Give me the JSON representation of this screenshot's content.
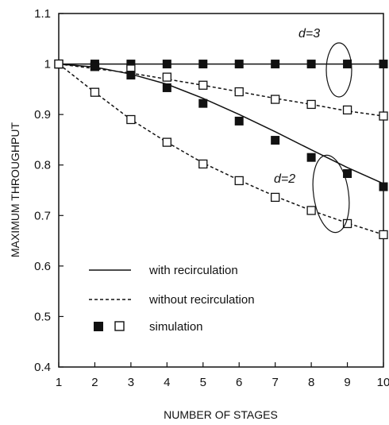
{
  "chart_data": {
    "type": "line",
    "xlabel": "NUMBER OF STAGES",
    "ylabel": "MAXIMUM THROUGHPUT",
    "xlim": [
      1,
      10
    ],
    "ylim": [
      0.4,
      1.1
    ],
    "x_ticks": [
      "1",
      "2",
      "3",
      "4",
      "5",
      "6",
      "7",
      "8",
      "9",
      "10"
    ],
    "y_ticks": [
      "0.4",
      "0.5",
      "0.6",
      "0.7",
      "0.8",
      "0.9",
      "1",
      "1.1"
    ],
    "grid": false,
    "legend_position": "lower-left",
    "legend": {
      "solid": "with recirculation",
      "dashed": "without recirculation",
      "markers": "simulation"
    },
    "annotations": [
      {
        "text": "d=3",
        "x": 8.4,
        "y": 1.03
      },
      {
        "text": "d=2",
        "x": 8.2,
        "y": 0.732
      }
    ],
    "x": [
      1,
      2,
      3,
      4,
      5,
      6,
      7,
      8,
      9,
      10
    ],
    "series": [
      {
        "group": "d=3",
        "line": "solid",
        "marker": "filled-square",
        "values": [
          1,
          1,
          1,
          1,
          1,
          1,
          1,
          1,
          1,
          1
        ],
        "simulation": [
          1,
          1,
          1,
          1,
          1,
          1,
          1,
          1,
          1,
          1
        ]
      },
      {
        "group": "d=3",
        "line": "dashed",
        "marker": "open-square",
        "values": [
          1,
          0.991,
          0.982,
          0.97,
          0.958,
          0.945,
          0.932,
          0.92,
          0.907,
          0.897
        ],
        "simulation": [
          1,
          0.995,
          0.99,
          0.974,
          0.958,
          0.945,
          0.93,
          0.92,
          0.909,
          0.897
        ]
      },
      {
        "group": "d=2",
        "line": "solid",
        "marker": "filled-square",
        "values": [
          1,
          0.994,
          0.98,
          0.96,
          0.932,
          0.9,
          0.866,
          0.83,
          0.795,
          0.763
        ],
        "simulation": [
          1,
          0.995,
          0.978,
          0.953,
          0.922,
          0.887,
          0.849,
          0.815,
          0.783,
          0.757
        ]
      },
      {
        "group": "d=2",
        "line": "dashed",
        "marker": "open-square",
        "values": [
          1,
          0.944,
          0.89,
          0.845,
          0.804,
          0.77,
          0.738,
          0.71,
          0.685,
          0.662
        ],
        "simulation": [
          1,
          0.944,
          0.89,
          0.845,
          0.802,
          0.769,
          0.736,
          0.71,
          0.684,
          0.662
        ]
      }
    ]
  }
}
